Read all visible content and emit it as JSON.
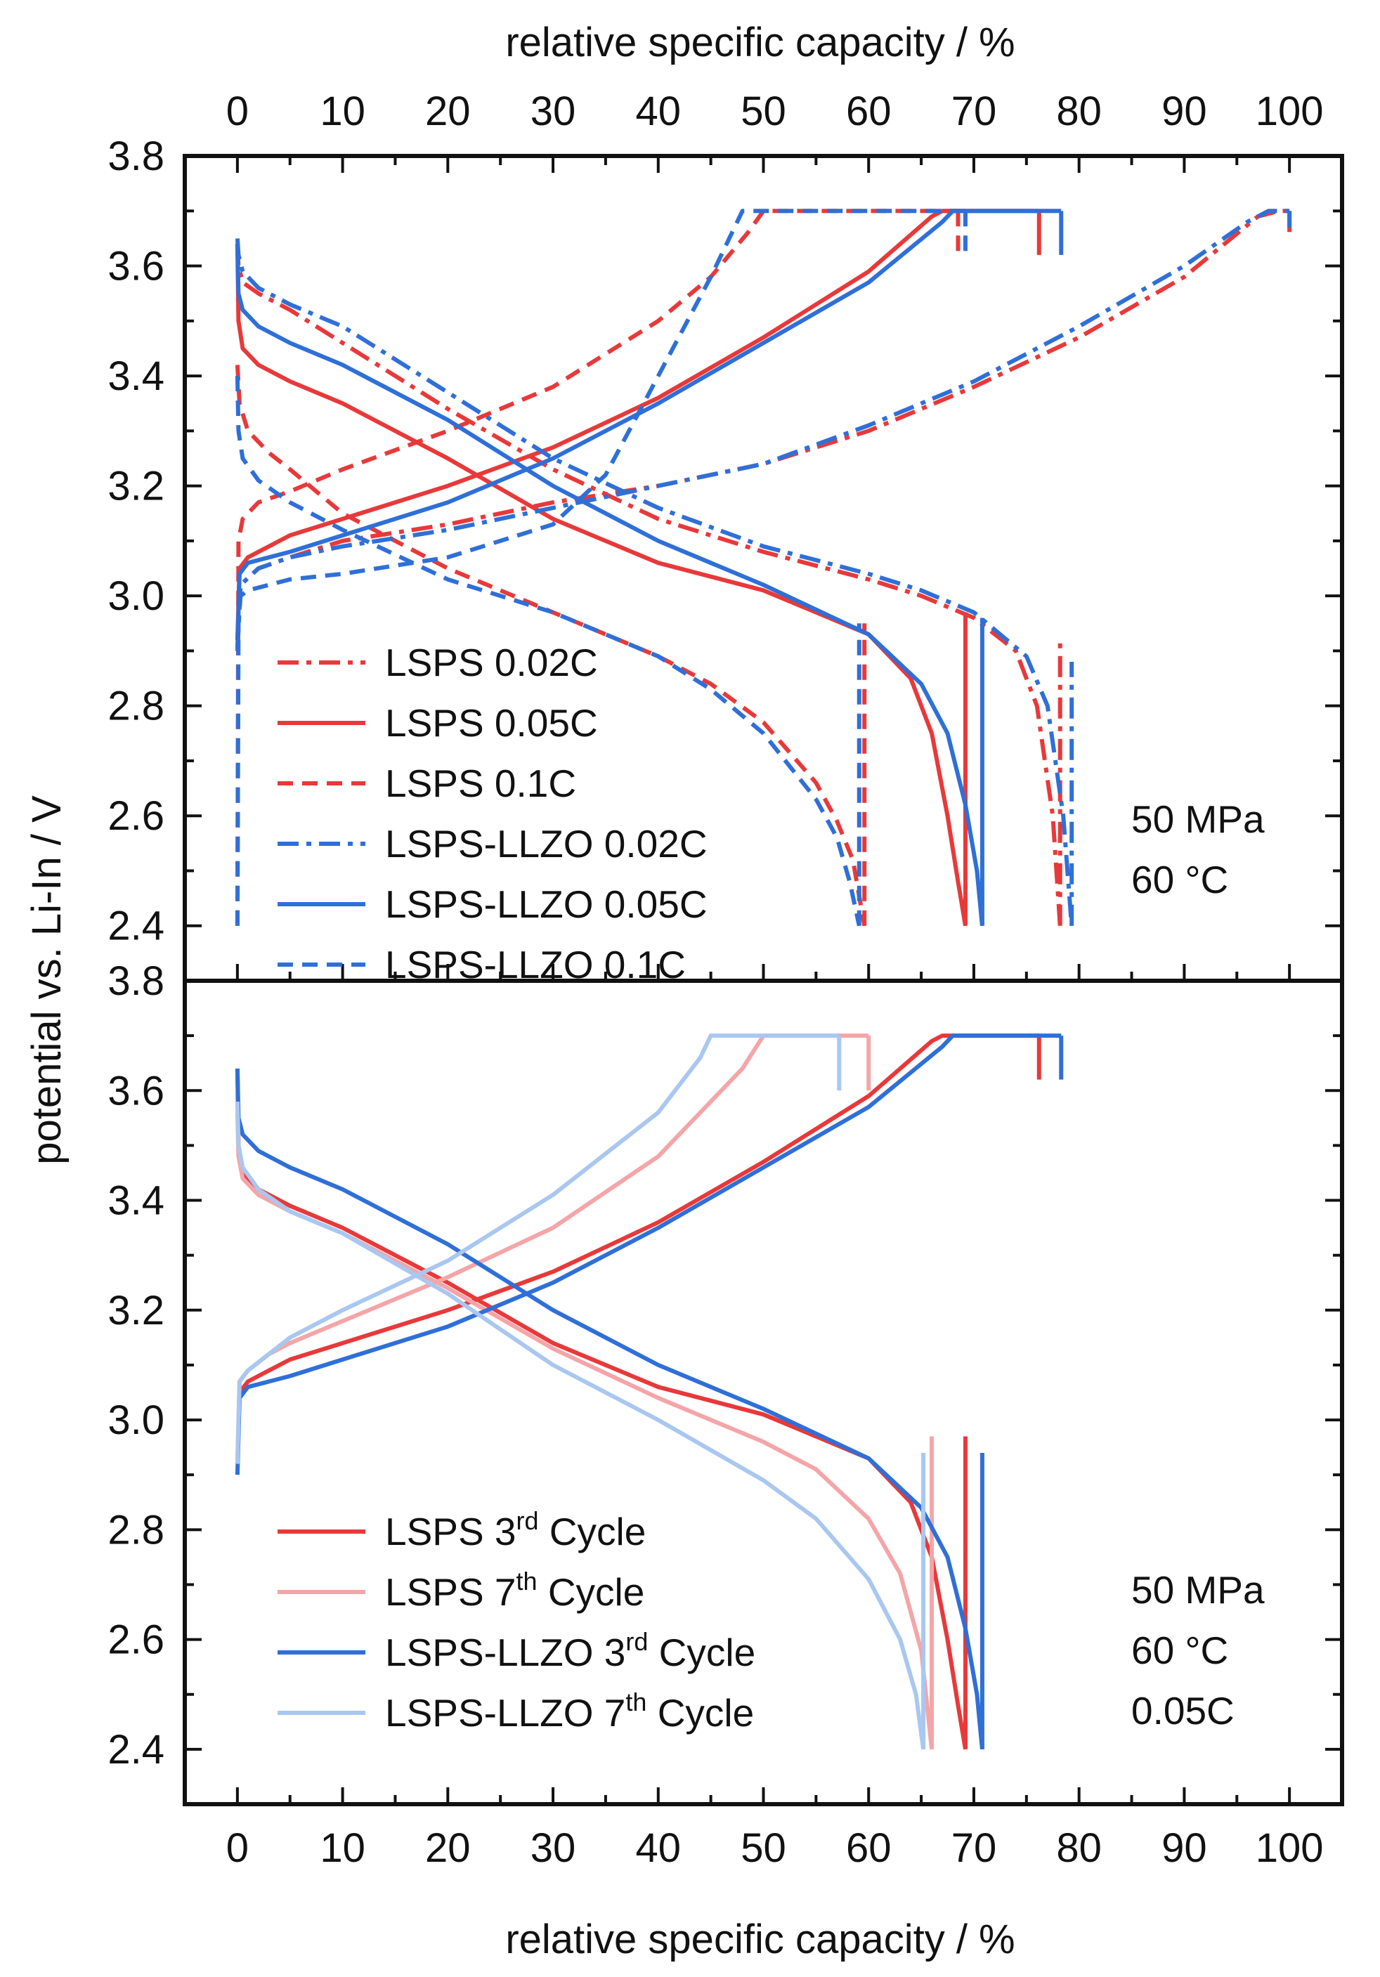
{
  "top_axis_title": "relative specific capacity / %",
  "bottom_axis_title": "relative specific capacity / %",
  "y_axis_title": "potential vs. Li-In / V",
  "chart_data": [
    {
      "type": "line",
      "panel": "top",
      "xlim": [
        -5,
        105
      ],
      "ylim": [
        2.3,
        3.8
      ],
      "x_ticks": [
        0,
        10,
        20,
        30,
        40,
        50,
        60,
        70,
        80,
        90,
        100
      ],
      "y_ticks": [
        "2.4",
        "2.6",
        "2.8",
        "3.0",
        "3.2",
        "3.4",
        "3.6",
        "3.8"
      ],
      "conditions": [
        "50 MPa",
        "60 °C"
      ],
      "series": [
        {
          "name": "LSPS 0.02C",
          "color": "#e8393a",
          "dash": "dashdot",
          "charge": {
            "x": [
              0,
              0.3,
              2,
              5,
              10,
              20,
              30,
              40,
              50,
              60,
              70,
              80,
              90,
              97,
              99,
              100
            ],
            "y": [
              2.9,
              3.02,
              3.05,
              3.07,
              3.1,
              3.13,
              3.17,
              3.2,
              3.24,
              3.3,
              3.38,
              3.47,
              3.58,
              3.69,
              3.7,
              3.7
            ],
            "end_drop": [
              100,
              3.7,
              3.65
            ]
          },
          "discharge": {
            "x": [
              0,
              0.1,
              0.5,
              2,
              5,
              10,
              20,
              30,
              40,
              50,
              60,
              65,
              70,
              74,
              76,
              77.5,
              78.2
            ],
            "y": [
              3.64,
              3.6,
              3.57,
              3.55,
              3.52,
              3.46,
              3.34,
              3.23,
              3.14,
              3.08,
              3.03,
              3.0,
              2.96,
              2.9,
              2.8,
              2.6,
              2.4
            ],
            "end_rise": [
              78.2,
              2.4,
              2.92
            ]
          }
        },
        {
          "name": "LSPS 0.05C",
          "color": "#e8393a",
          "dash": "solid",
          "charge": {
            "x": [
              0,
              0.2,
              1,
              3,
              5,
              10,
              20,
              30,
              40,
              50,
              60,
              66,
              67
            ],
            "y": [
              2.92,
              3.05,
              3.07,
              3.09,
              3.11,
              3.14,
              3.2,
              3.27,
              3.36,
              3.47,
              3.59,
              3.69,
              3.7
            ],
            "end_x": 76.2,
            "end_drop": [
              76.2,
              3.7,
              3.62
            ]
          },
          "discharge": {
            "x": [
              0,
              0.1,
              0.5,
              2,
              5,
              10,
              20,
              30,
              40,
              50,
              60,
              64,
              66,
              67.5,
              68.5,
              69.2
            ],
            "y": [
              3.64,
              3.5,
              3.45,
              3.42,
              3.39,
              3.35,
              3.25,
              3.14,
              3.06,
              3.01,
              2.93,
              2.85,
              2.75,
              2.6,
              2.48,
              2.4
            ],
            "end_rise": [
              69.2,
              2.4,
              2.97
            ]
          }
        },
        {
          "name": "LSPS 0.1C",
          "color": "#e8393a",
          "dash": "dashed",
          "charge": {
            "x": [
              0,
              0.1,
              0.5,
              1,
              2,
              5,
              10,
              20,
              30,
              40,
              45,
              48.5,
              50
            ],
            "y": [
              2.4,
              3.1,
              3.14,
              3.15,
              3.17,
              3.19,
              3.23,
              3.3,
              3.38,
              3.5,
              3.58,
              3.66,
              3.7
            ],
            "end_x": 68.5,
            "end_drop": [
              68.5,
              3.7,
              3.62
            ]
          },
          "discharge": {
            "x": [
              0,
              0.2,
              1,
              3,
              5,
              10,
              20,
              30,
              40,
              45,
              50,
              55,
              57,
              58.5,
              59.6
            ],
            "y": [
              3.42,
              3.35,
              3.3,
              3.26,
              3.23,
              3.15,
              3.05,
              2.97,
              2.89,
              2.84,
              2.77,
              2.66,
              2.59,
              2.52,
              2.4
            ],
            "end_rise": [
              59.6,
              2.4,
              2.95
            ]
          }
        },
        {
          "name": "LSPS-LLZO 0.02C",
          "color": "#2f6fd8",
          "dash": "dashdot",
          "charge": {
            "x": [
              0,
              0.3,
              2,
              5,
              10,
              20,
              30,
              40,
              50,
              60,
              70,
              80,
              90,
              96,
              98,
              100
            ],
            "y": [
              2.9,
              3.02,
              3.05,
              3.07,
              3.09,
              3.12,
              3.16,
              3.2,
              3.24,
              3.31,
              3.39,
              3.49,
              3.6,
              3.68,
              3.7,
              3.7
            ],
            "end_drop": [
              100,
              3.7,
              3.67
            ]
          },
          "discharge": {
            "x": [
              0,
              0.1,
              0.5,
              2,
              5,
              10,
              20,
              30,
              40,
              50,
              60,
              65,
              70,
              75,
              77,
              78.5,
              79.3
            ],
            "y": [
              3.65,
              3.62,
              3.59,
              3.56,
              3.53,
              3.49,
              3.37,
              3.25,
              3.16,
              3.09,
              3.04,
              3.01,
              2.97,
              2.89,
              2.8,
              2.6,
              2.4
            ],
            "end_rise": [
              79.3,
              2.4,
              2.88
            ]
          }
        },
        {
          "name": "LSPS-LLZO 0.05C",
          "color": "#2f6fd8",
          "dash": "solid",
          "charge": {
            "x": [
              0,
              0.2,
              1,
              3,
              5,
              10,
              20,
              30,
              40,
              50,
              60,
              67,
              68
            ],
            "y": [
              2.9,
              3.04,
              3.06,
              3.07,
              3.08,
              3.11,
              3.17,
              3.25,
              3.35,
              3.46,
              3.57,
              3.68,
              3.7
            ],
            "end_x": 78.3,
            "end_drop": [
              78.3,
              3.7,
              3.62
            ]
          },
          "discharge": {
            "x": [
              0,
              0.1,
              0.5,
              2,
              5,
              10,
              20,
              30,
              40,
              50,
              60,
              65,
              67.5,
              69.2,
              70.3,
              70.8
            ],
            "y": [
              3.64,
              3.55,
              3.52,
              3.49,
              3.46,
              3.42,
              3.32,
              3.2,
              3.1,
              3.02,
              2.93,
              2.84,
              2.75,
              2.62,
              2.5,
              2.4
            ],
            "end_rise": [
              70.8,
              2.4,
              2.96
            ]
          }
        },
        {
          "name": "LSPS-LLZO 0.1C",
          "color": "#2f6fd8",
          "dash": "dashed",
          "charge": {
            "x": [
              0,
              0.1,
              0.3,
              1,
              3,
              5,
              10,
              20,
              30,
              35,
              40,
              45,
              47.5,
              48
            ],
            "y": [
              2.4,
              2.95,
              3.0,
              3.01,
              3.02,
              3.03,
              3.04,
              3.07,
              3.13,
              3.22,
              3.4,
              3.58,
              3.68,
              3.7
            ],
            "end_x": 69.2,
            "end_drop": [
              69.2,
              3.7,
              3.62
            ]
          },
          "discharge": {
            "x": [
              0,
              0.1,
              0.5,
              2,
              5,
              10,
              20,
              30,
              40,
              45,
              50,
              55,
              57,
              58.2,
              59.1
            ],
            "y": [
              3.4,
              3.3,
              3.25,
              3.21,
              3.17,
              3.12,
              3.03,
              2.97,
              2.89,
              2.83,
              2.75,
              2.63,
              2.56,
              2.48,
              2.4
            ],
            "end_rise": [
              59.1,
              2.4,
              2.95
            ]
          }
        }
      ]
    },
    {
      "type": "line",
      "panel": "bottom",
      "xlim": [
        -5,
        105
      ],
      "ylim": [
        2.3,
        3.8
      ],
      "x_ticks": [
        0,
        10,
        20,
        30,
        40,
        50,
        60,
        70,
        80,
        90,
        100
      ],
      "y_ticks": [
        "2.4",
        "2.6",
        "2.8",
        "3.0",
        "3.2",
        "3.4",
        "3.6",
        "3.8"
      ],
      "conditions": [
        "50 MPa",
        "60 °C",
        "0.05C"
      ],
      "series": [
        {
          "name_main": "LSPS 3",
          "name_sup": "rd",
          "name_tail": " Cycle",
          "color": "#e8393a",
          "dash": "solid",
          "charge": {
            "x": [
              0,
              0.2,
              1,
              3,
              5,
              10,
              20,
              30,
              40,
              50,
              60,
              66,
              67
            ],
            "y": [
              2.92,
              3.05,
              3.07,
              3.09,
              3.11,
              3.14,
              3.2,
              3.27,
              3.36,
              3.47,
              3.59,
              3.69,
              3.7
            ],
            "end_x": 76.2,
            "end_drop": [
              76.2,
              3.7,
              3.62
            ]
          },
          "discharge": {
            "x": [
              0,
              0.1,
              0.5,
              2,
              5,
              10,
              20,
              30,
              40,
              50,
              60,
              64,
              66,
              67.5,
              68.5,
              69.2
            ],
            "y": [
              3.64,
              3.5,
              3.45,
              3.42,
              3.39,
              3.35,
              3.25,
              3.14,
              3.06,
              3.01,
              2.93,
              2.85,
              2.75,
              2.6,
              2.48,
              2.4
            ],
            "end_rise": [
              69.2,
              2.4,
              2.97
            ]
          }
        },
        {
          "name_main": "LSPS 7",
          "name_sup": "th",
          "name_tail": " Cycle",
          "color": "#f4a5a8",
          "dash": "solid",
          "charge": {
            "x": [
              0,
              0.2,
              1,
              3,
              5,
              10,
              20,
              30,
              40,
              48,
              50
            ],
            "y": [
              2.92,
              3.07,
              3.09,
              3.12,
              3.14,
              3.18,
              3.26,
              3.35,
              3.48,
              3.64,
              3.7
            ],
            "end_x": 60,
            "end_drop": [
              60,
              3.7,
              3.6
            ]
          },
          "discharge": {
            "x": [
              0,
              0.1,
              0.5,
              2,
              5,
              10,
              20,
              30,
              40,
              50,
              55,
              60,
              63,
              65,
              66
            ],
            "y": [
              3.56,
              3.48,
              3.44,
              3.41,
              3.38,
              3.34,
              3.24,
              3.13,
              3.04,
              2.96,
              2.91,
              2.82,
              2.72,
              2.58,
              2.4
            ],
            "end_rise": [
              66,
              2.4,
              2.97
            ]
          }
        },
        {
          "name_main": "LSPS-LLZO 3",
          "name_sup": "rd",
          "name_tail": " Cycle",
          "color": "#2f6fd8",
          "dash": "solid",
          "charge": {
            "x": [
              0,
              0.2,
              1,
              3,
              5,
              10,
              20,
              30,
              40,
              50,
              60,
              67,
              68
            ],
            "y": [
              2.9,
              3.04,
              3.06,
              3.07,
              3.08,
              3.11,
              3.17,
              3.25,
              3.35,
              3.46,
              3.57,
              3.68,
              3.7
            ],
            "end_x": 78.3,
            "end_drop": [
              78.3,
              3.7,
              3.62
            ]
          },
          "discharge": {
            "x": [
              0,
              0.1,
              0.5,
              2,
              5,
              10,
              20,
              30,
              40,
              50,
              60,
              65,
              67.5,
              69.2,
              70.3,
              70.8
            ],
            "y": [
              3.64,
              3.55,
              3.52,
              3.49,
              3.46,
              3.42,
              3.32,
              3.2,
              3.1,
              3.02,
              2.93,
              2.84,
              2.75,
              2.62,
              2.5,
              2.4
            ],
            "end_rise": [
              70.8,
              2.4,
              2.94
            ]
          }
        },
        {
          "name_main": "LSPS-LLZO 7",
          "name_sup": "th",
          "name_tail": " Cycle",
          "color": "#a9c7f0",
          "dash": "solid",
          "charge": {
            "x": [
              0,
              0.2,
              1,
              3,
              5,
              10,
              20,
              30,
              40,
              44,
              45
            ],
            "y": [
              2.92,
              3.07,
              3.09,
              3.12,
              3.15,
              3.2,
              3.29,
              3.41,
              3.56,
              3.66,
              3.7
            ],
            "end_x": 57.2,
            "end_drop": [
              57.2,
              3.7,
              3.6
            ]
          },
          "discharge": {
            "x": [
              0,
              0.1,
              0.5,
              2,
              5,
              10,
              20,
              30,
              40,
              50,
              55,
              60,
              63,
              64.5,
              65.2
            ],
            "y": [
              3.58,
              3.5,
              3.46,
              3.42,
              3.38,
              3.34,
              3.23,
              3.1,
              3.0,
              2.89,
              2.82,
              2.71,
              2.6,
              2.5,
              2.4
            ],
            "end_rise": [
              65.2,
              2.4,
              2.94
            ]
          }
        }
      ]
    }
  ]
}
